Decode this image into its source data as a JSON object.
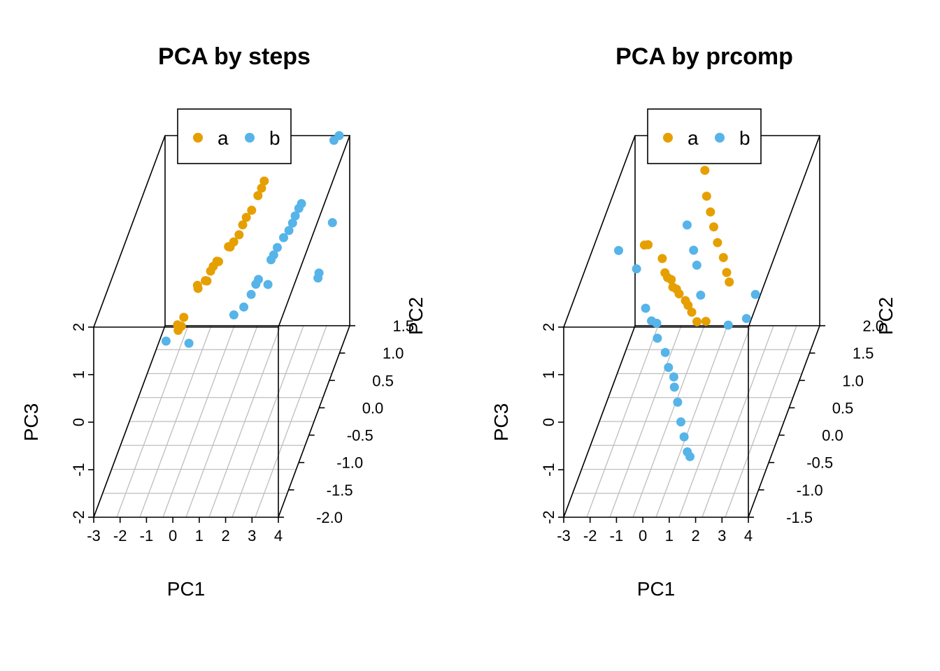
{
  "colors": {
    "a": "#E69F00",
    "b": "#56B4E9",
    "grid": "#BEBEBE",
    "axis": "#000000"
  },
  "chart_data": [
    {
      "type": "scatter",
      "title": "PCA by steps",
      "xlabel": "PC1",
      "ylabel": "PC2",
      "zlabel": "PC3",
      "x_ticks": [
        "-3",
        "-2",
        "-1",
        "0",
        "1",
        "2",
        "3",
        "4"
      ],
      "y_ticks": [
        "-2.0",
        "-1.5",
        "-1.0",
        "-0.5",
        "0.0",
        "0.5",
        "1.0",
        "1.5"
      ],
      "z_ticks": [
        "-2",
        "-1",
        "0",
        "1",
        "2"
      ],
      "xlim": [
        -3,
        4
      ],
      "ylim": [
        -2.0,
        1.5
      ],
      "zlim": [
        -2,
        2
      ],
      "legend": {
        "position": "top",
        "items": [
          "a",
          "b"
        ]
      },
      "grid": true,
      "series": [
        {
          "name": "a",
          "color": "#E69F00",
          "points": [
            [
              -1.6,
              0.3,
              -0.6
            ],
            [
              -1.5,
              0.2,
              -0.6
            ],
            [
              -1.4,
              0.35,
              -0.5
            ],
            [
              -1.3,
              0.1,
              -0.4
            ],
            [
              -1.0,
              0.5,
              0.0
            ],
            [
              -0.9,
              0.4,
              0.05
            ],
            [
              -0.7,
              0.5,
              0.1
            ],
            [
              -0.6,
              0.45,
              0.15
            ],
            [
              -0.5,
              0.5,
              0.3
            ],
            [
              -0.4,
              0.5,
              0.4
            ],
            [
              -0.3,
              0.55,
              0.45
            ],
            [
              -0.2,
              0.5,
              0.5
            ],
            [
              0.1,
              0.6,
              0.7
            ],
            [
              0.2,
              0.55,
              0.75
            ],
            [
              0.3,
              0.6,
              0.8
            ],
            [
              0.5,
              0.6,
              0.95
            ],
            [
              0.6,
              0.65,
              1.1
            ],
            [
              0.7,
              0.7,
              1.2
            ],
            [
              0.9,
              0.7,
              1.35
            ],
            [
              1.1,
              0.75,
              1.6
            ],
            [
              1.2,
              0.8,
              1.7
            ],
            [
              1.3,
              0.8,
              1.85
            ]
          ]
        },
        {
          "name": "b",
          "color": "#56B4E9",
          "points": [
            [
              1.0,
              -0.3,
              0.3
            ],
            [
              1.3,
              -0.2,
              0.35
            ],
            [
              1.5,
              -0.1,
              0.5
            ],
            [
              1.6,
              0.0,
              0.6
            ],
            [
              1.7,
              0.0,
              0.7
            ],
            [
              2.1,
              0.1,
              1.0
            ],
            [
              2.2,
              0.1,
              1.1
            ],
            [
              2.3,
              0.15,
              1.2
            ],
            [
              2.5,
              0.2,
              1.35
            ],
            [
              2.7,
              0.2,
              1.5
            ],
            [
              2.8,
              0.25,
              1.6
            ],
            [
              2.9,
              0.25,
              1.75
            ],
            [
              3.0,
              0.3,
              1.85
            ],
            [
              3.1,
              0.3,
              1.95
            ],
            [
              3.5,
              1.3,
              0.4
            ],
            [
              3.3,
              0.9,
              -0.2
            ],
            [
              3.4,
              1.5,
              1.9
            ],
            [
              3.6,
              1.5,
              2.0
            ],
            [
              -0.8,
              -1.3,
              0.9
            ],
            [
              0.3,
              -1.6,
              1.2
            ],
            [
              2.6,
              -0.7,
              1.4
            ],
            [
              3.8,
              0.2,
              0.5
            ]
          ]
        }
      ]
    },
    {
      "type": "scatter",
      "title": "PCA by prcomp",
      "xlabel": "PC1",
      "ylabel": "PC2",
      "zlabel": "PC3",
      "x_ticks": [
        "-3",
        "-2",
        "-1",
        "0",
        "1",
        "2",
        "3",
        "4"
      ],
      "y_ticks": [
        "-1.5",
        "-1.0",
        "-0.5",
        "0.0",
        "0.5",
        "1.0",
        "1.5",
        "2.0"
      ],
      "z_ticks": [
        "-2",
        "-1",
        "0",
        "1",
        "2"
      ],
      "xlim": [
        -3,
        4
      ],
      "ylim": [
        -1.5,
        2.0
      ],
      "zlim": [
        -2,
        2
      ],
      "legend": {
        "position": "top",
        "items": [
          "a",
          "b"
        ]
      },
      "grid": true,
      "series": [
        {
          "name": "a",
          "color": "#E69F00",
          "points": [
            [
              -1.1,
              0.0,
              2.0
            ],
            [
              -1.0,
              0.05,
              1.95
            ],
            [
              -0.5,
              0.1,
              1.6
            ],
            [
              -0.4,
              0.1,
              1.3
            ],
            [
              -0.3,
              0.1,
              1.2
            ],
            [
              -0.2,
              0.15,
              1.1
            ],
            [
              -0.1,
              0.1,
              1.0
            ],
            [
              0.0,
              0.15,
              0.9
            ],
            [
              0.1,
              0.15,
              0.8
            ],
            [
              0.3,
              0.2,
              0.6
            ],
            [
              0.4,
              0.2,
              0.5
            ],
            [
              0.5,
              0.25,
              0.3
            ],
            [
              0.7,
              0.25,
              0.1
            ],
            [
              1.0,
              0.3,
              0.05
            ],
            [
              -0.2,
              1.8,
              1.5
            ],
            [
              0.1,
              1.5,
              1.3
            ],
            [
              0.4,
              1.3,
              1.2
            ],
            [
              0.6,
              1.2,
              1.0
            ],
            [
              0.9,
              1.0,
              0.9
            ],
            [
              1.2,
              0.9,
              0.7
            ],
            [
              1.4,
              0.8,
              0.5
            ],
            [
              1.5,
              0.8,
              0.3
            ]
          ]
        },
        {
          "name": "b",
          "color": "#56B4E9",
          "points": [
            [
              -2.0,
              -0.1,
              2.0
            ],
            [
              -1.4,
              0.0,
              1.5
            ],
            [
              -0.9,
              -0.2,
              0.9
            ],
            [
              -0.6,
              -0.3,
              0.75
            ],
            [
              -0.4,
              -0.3,
              0.7
            ],
            [
              -0.3,
              -0.4,
              0.5
            ],
            [
              0.0,
              -0.4,
              0.2
            ],
            [
              0.2,
              -0.5,
              0.0
            ],
            [
              0.4,
              -0.5,
              -0.2
            ],
            [
              0.5,
              -0.6,
              -0.3
            ],
            [
              0.7,
              -0.7,
              -0.5
            ],
            [
              0.9,
              -0.8,
              -0.8
            ],
            [
              1.1,
              -0.9,
              -1.0
            ],
            [
              1.3,
              -1.0,
              -1.2
            ],
            [
              1.4,
              -1.0,
              -1.3
            ],
            [
              -0.1,
              0.8,
              1.5
            ],
            [
              0.3,
              0.6,
              1.2
            ],
            [
              0.5,
              0.5,
              1.0
            ],
            [
              0.8,
              0.3,
              0.6
            ],
            [
              2.0,
              0.1,
              0.2
            ],
            [
              2.8,
              0.4,
              0.5
            ],
            [
              3.0,
              -0.3,
              0.8
            ]
          ]
        }
      ]
    }
  ]
}
